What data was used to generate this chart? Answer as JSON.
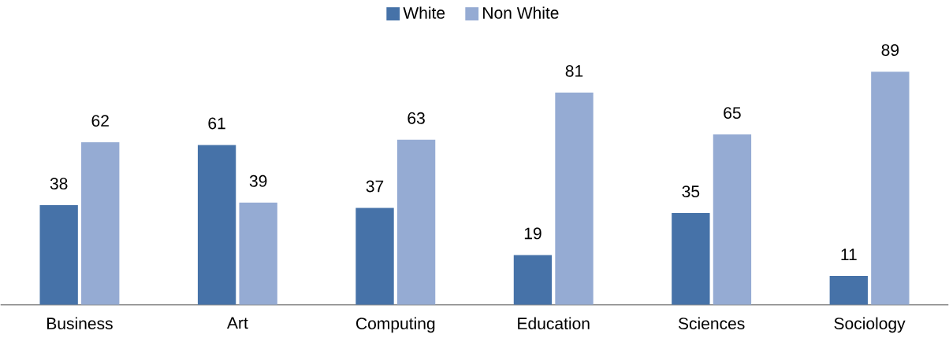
{
  "chart_data": {
    "type": "bar",
    "categories": [
      "Business",
      "Art",
      "Computing",
      "Education",
      "Sciences",
      "Sociology"
    ],
    "series": [
      {
        "name": "White",
        "color": "#4672a8",
        "values": [
          38,
          61,
          37,
          19,
          35,
          11
        ]
      },
      {
        "name": "Non White",
        "color": "#95abd3",
        "values": [
          62,
          39,
          63,
          81,
          65,
          89
        ]
      }
    ],
    "data_labels": true,
    "legend": "top"
  }
}
